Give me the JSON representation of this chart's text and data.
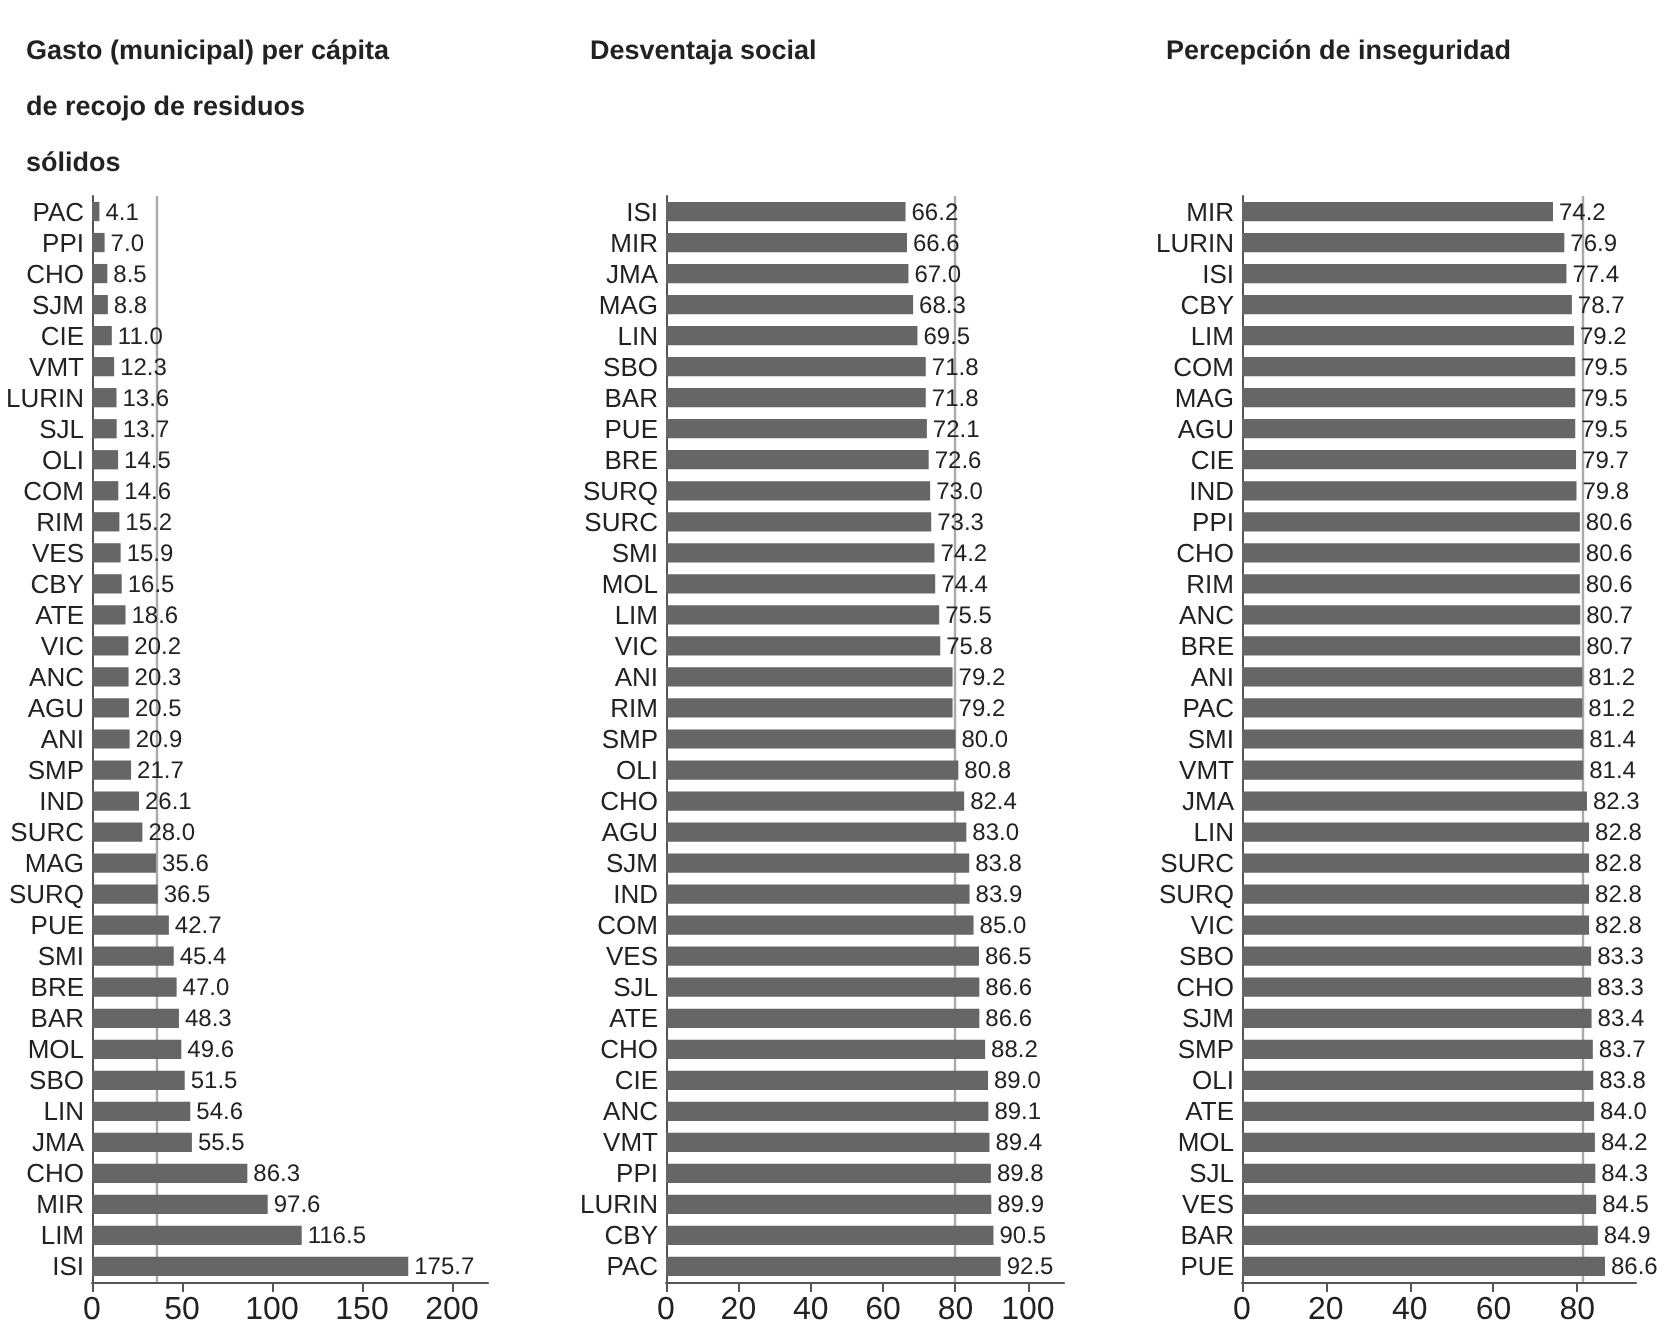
{
  "chart_data": [
    {
      "type": "bar",
      "orientation": "horizontal",
      "title": "Gasto (municipal) per cápita de recojo de residuos sólidos",
      "color": "#666666",
      "grid": false,
      "categories": [
        "PAC",
        "PPI",
        "CHO",
        "SJM",
        "CIE",
        "VMT",
        "LURIN",
        "SJL",
        "OLI",
        "COM",
        "RIM",
        "VES",
        "CBY",
        "ATE",
        "VIC",
        "ANC",
        "AGU",
        "ANI",
        "SMP",
        "IND",
        "SURC",
        "MAG",
        "SURQ",
        "PUE",
        "SMI",
        "BRE",
        "BAR",
        "MOL",
        "SBO",
        "LIN",
        "JMA",
        "CHO",
        "MIR",
        "LIM",
        "ISI"
      ],
      "values": [
        4.1,
        7.0,
        8.5,
        8.8,
        11.0,
        12.3,
        13.6,
        13.7,
        14.5,
        14.6,
        15.2,
        15.9,
        16.5,
        18.6,
        20.2,
        20.3,
        20.5,
        20.9,
        21.7,
        26.1,
        28.0,
        35.6,
        36.5,
        42.7,
        45.4,
        47.0,
        48.3,
        49.6,
        51.5,
        54.6,
        55.5,
        86.3,
        97.6,
        116.5,
        175.7
      ],
      "value_labels": [
        "4.1",
        "7.0",
        "8.5",
        "8.8",
        "11.0",
        "12.3",
        "13.6",
        "13.7",
        "14.5",
        "14.6",
        "15.2",
        "15.9",
        "16.5",
        "18.6",
        "20.2",
        "20.3",
        "20.5",
        "20.9",
        "21.7",
        "26.1",
        "28.0",
        "35.6",
        "36.5",
        "42.7",
        "45.4",
        "47.0",
        "48.3",
        "49.6",
        "51.5",
        "54.6",
        "55.5",
        "86.3",
        "97.6",
        "116.5",
        "175.7"
      ],
      "xlim": [
        0,
        220
      ],
      "xticks": [
        0,
        50,
        100,
        150,
        200
      ],
      "ref_lines": [
        {
          "axis": "x",
          "value": 36,
          "color": "#aaaaaa"
        }
      ]
    },
    {
      "type": "bar",
      "orientation": "horizontal",
      "title": "Desventaja social",
      "color": "#666666",
      "grid": false,
      "categories": [
        "ISI",
        "MIR",
        "JMA",
        "MAG",
        "LIN",
        "SBO",
        "BAR",
        "PUE",
        "BRE",
        "SURQ",
        "SURC",
        "SMI",
        "MOL",
        "LIM",
        "VIC",
        "ANI",
        "RIM",
        "SMP",
        "OLI",
        "CHO",
        "AGU",
        "SJM",
        "IND",
        "COM",
        "VES",
        "SJL",
        "ATE",
        "CHO",
        "CIE",
        "ANC",
        "VMT",
        "PPI",
        "LURIN",
        "CBY",
        "PAC"
      ],
      "values": [
        66.2,
        66.6,
        67.0,
        68.3,
        69.5,
        71.8,
        71.8,
        72.1,
        72.6,
        73.0,
        73.3,
        74.2,
        74.4,
        75.5,
        75.8,
        79.2,
        79.2,
        80.0,
        80.8,
        82.4,
        83.0,
        83.8,
        83.9,
        85.0,
        86.5,
        86.6,
        86.6,
        88.2,
        89.0,
        89.1,
        89.4,
        89.8,
        89.9,
        90.5,
        92.5
      ],
      "value_labels": [
        "66.2",
        "66.6",
        "67.0",
        "68.3",
        "69.5",
        "71.8",
        "71.8",
        "72.1",
        "72.6",
        "73.0",
        "73.3",
        "74.2",
        "74.4",
        "75.5",
        "75.8",
        "79.2",
        "79.2",
        "80.0",
        "80.8",
        "82.4",
        "83.0",
        "83.8",
        "83.9",
        "85.0",
        "86.5",
        "86.6",
        "86.6",
        "88.2",
        "89.0",
        "89.1",
        "89.4",
        "89.8",
        "89.9",
        "90.5",
        "92.5"
      ],
      "xlim": [
        0,
        110
      ],
      "xticks": [
        0,
        20,
        40,
        60,
        80,
        100
      ],
      "ref_lines": [
        {
          "axis": "x",
          "value": 80,
          "color": "#aaaaaa"
        }
      ]
    },
    {
      "type": "bar",
      "orientation": "horizontal",
      "title": "Percepción de inseguridad",
      "color": "#666666",
      "grid": false,
      "categories": [
        "MIR",
        "LURIN",
        "ISI",
        "CBY",
        "LIM",
        "COM",
        "MAG",
        "AGU",
        "CIE",
        "IND",
        "PPI",
        "CHO",
        "RIM",
        "ANC",
        "BRE",
        "ANI",
        "PAC",
        "SMI",
        "VMT",
        "JMA",
        "LIN",
        "SURC",
        "SURQ",
        "VIC",
        "SBO",
        "CHO",
        "SJM",
        "SMP",
        "OLI",
        "ATE",
        "MOL",
        "SJL",
        "VES",
        "BAR",
        "PUE"
      ],
      "values": [
        74.2,
        76.9,
        77.4,
        78.7,
        79.2,
        79.5,
        79.5,
        79.5,
        79.7,
        79.8,
        80.6,
        80.6,
        80.6,
        80.7,
        80.7,
        81.2,
        81.2,
        81.4,
        81.4,
        82.3,
        82.8,
        82.8,
        82.8,
        82.8,
        83.3,
        83.3,
        83.4,
        83.7,
        83.8,
        84.0,
        84.2,
        84.3,
        84.5,
        84.9,
        86.6
      ],
      "value_labels": [
        "74.2",
        "76.9",
        "77.4",
        "78.7",
        "79.2",
        "79.5",
        "79.5",
        "79.5",
        "79.7",
        "79.8",
        "80.6",
        "80.6",
        "80.6",
        "80.7",
        "80.7",
        "81.2",
        "81.2",
        "81.4",
        "81.4",
        "82.3",
        "82.8",
        "82.8",
        "82.8",
        "82.8",
        "83.3",
        "83.3",
        "83.4",
        "83.7",
        "83.8",
        "84.0",
        "84.2",
        "84.3",
        "84.5",
        "84.9",
        "86.6"
      ],
      "xlim": [
        0,
        94
      ],
      "xticks": [
        0,
        20,
        40,
        60,
        80
      ],
      "ref_lines": [
        {
          "axis": "x",
          "value": 81.4,
          "color": "#aaaaaa"
        }
      ]
    }
  ]
}
